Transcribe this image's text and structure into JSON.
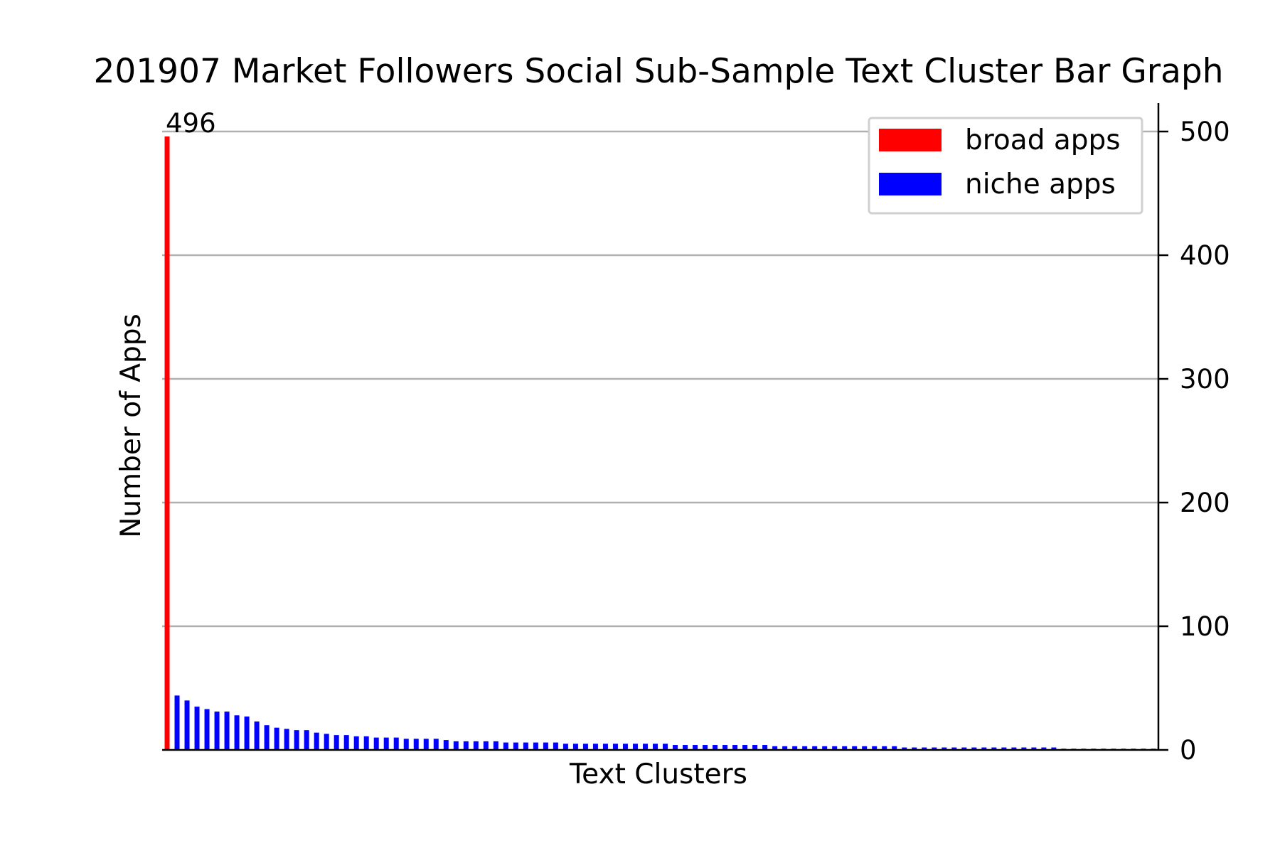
{
  "chart_data": {
    "type": "bar",
    "title": "201907 Market Followers Social Sub-Sample Text Cluster Bar Graph",
    "xlabel": "Text Clusters",
    "ylabel": "Number of Apps",
    "ylim": [
      0,
      523
    ],
    "yticks": [
      0,
      100,
      200,
      300,
      400,
      500
    ],
    "y_axis_side": "right",
    "grid": "horizontal",
    "legend_position": "top-right",
    "colors": {
      "broad": "#ff0000",
      "niche": "#0000ff",
      "grid": "#b0b0b0"
    },
    "series": [
      {
        "name": "broad apps",
        "color": "#ff0000",
        "values": [
          496
        ]
      },
      {
        "name": "niche apps",
        "color": "#0000ff",
        "values": [
          44,
          40,
          35,
          33,
          31,
          31,
          28,
          27,
          23,
          20,
          18,
          17,
          16,
          16,
          14,
          13,
          12,
          12,
          11,
          11,
          10,
          10,
          10,
          9,
          9,
          9,
          9,
          8,
          7,
          7,
          7,
          7,
          7,
          6,
          6,
          6,
          6,
          6,
          6,
          5,
          5,
          5,
          5,
          5,
          5,
          5,
          5,
          5,
          5,
          5,
          4,
          4,
          4,
          4,
          4,
          4,
          4,
          4,
          4,
          4,
          3,
          3,
          3,
          3,
          3,
          3,
          3,
          3,
          3,
          3,
          3,
          3,
          3,
          2,
          2,
          2,
          2,
          2,
          2,
          2,
          2,
          2,
          2,
          2,
          2,
          2,
          2,
          2,
          2,
          1,
          1,
          1,
          1,
          1,
          1,
          1,
          1,
          1,
          1
        ]
      }
    ],
    "annotations": [
      "496"
    ]
  }
}
